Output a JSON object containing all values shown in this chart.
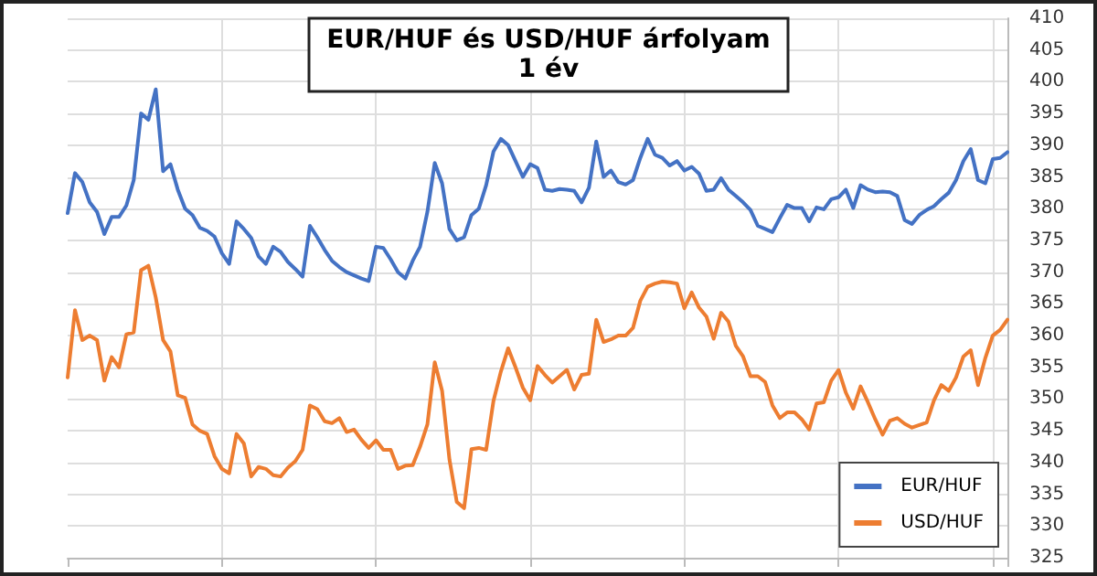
{
  "chart_data": {
    "type": "line",
    "title": "EUR/HUF és USD/HUF árfolyam",
    "subtitle": "1 év",
    "categories": [
      null,
      null,
      null,
      null,
      null,
      null,
      null,
      null,
      null,
      null,
      null,
      null,
      null,
      null,
      null,
      null,
      null,
      null,
      null,
      null,
      null,
      null,
      null,
      null,
      null,
      null,
      null,
      null,
      null,
      null,
      null,
      null,
      null,
      null,
      null,
      null,
      null,
      null,
      null,
      null,
      null,
      null,
      null,
      null,
      null,
      null,
      null,
      null,
      null,
      null,
      null,
      null,
      null,
      null,
      null,
      null,
      null,
      null,
      null,
      null,
      null,
      null,
      null,
      null,
      null,
      null,
      null,
      null,
      null,
      null,
      null,
      null,
      null,
      null,
      null,
      null,
      null,
      null,
      null,
      null,
      null,
      null,
      null,
      null,
      null,
      null,
      null,
      null,
      null,
      null,
      null,
      null,
      null,
      null,
      null,
      null,
      null,
      null,
      null,
      null,
      null,
      null,
      null,
      null,
      null,
      null,
      null,
      null,
      null,
      null,
      null,
      null,
      null,
      null,
      null,
      null,
      null,
      null,
      null,
      null,
      null,
      null,
      null,
      null,
      null,
      null,
      null,
      null,
      null
    ],
    "series": [
      {
        "name": "EUR/HUF",
        "color": "#4472c4",
        "values": [
          379.3,
          385.6,
          384.2,
          381,
          379.5,
          376,
          378.7,
          378.7,
          380.5,
          384.5,
          395,
          394,
          398.8,
          385.9,
          387,
          383,
          380,
          379,
          377,
          376.5,
          375.6,
          373,
          371.3,
          378,
          376.8,
          375.4,
          372.5,
          371.3,
          374,
          373.2,
          371.6,
          370.5,
          369.3,
          377.3,
          375.5,
          373.5,
          371.8,
          370.8,
          370,
          369.5,
          369,
          368.6,
          374,
          373.8,
          372,
          370,
          369,
          371.8,
          374,
          379.5,
          387.2,
          384,
          376.8,
          375,
          375.5,
          379,
          380,
          383.7,
          389,
          391,
          390,
          387.5,
          385,
          387,
          386.4,
          383,
          382.8,
          383.1,
          383,
          382.8,
          381,
          383.3,
          390.6,
          385,
          386,
          384.2,
          383.8,
          384.5,
          388,
          391,
          388.5,
          388,
          386.8,
          387.5,
          386,
          386.6,
          385.5,
          382.8,
          383,
          384.8,
          383,
          382,
          381,
          379.8,
          377.3,
          376.8,
          376.3,
          378.5,
          380.6,
          380.1,
          380.1,
          378,
          380.2,
          379.9,
          381.5,
          381.8,
          383,
          380.1,
          383.7,
          383,
          382.6,
          382.7,
          382.6,
          382,
          378.2,
          377.6,
          379,
          379.8,
          380.4,
          381.5,
          382.5,
          384.5,
          387.5,
          389.4,
          384.5,
          384,
          387.8,
          388,
          388.9
        ]
      },
      {
        "name": "USD/HUF",
        "color": "#ed7d31",
        "values": [
          353.4,
          364,
          359.3,
          360,
          359.3,
          352.9,
          356.6,
          355,
          360.2,
          360.5,
          370.3,
          371,
          366,
          359.3,
          357.5,
          350.6,
          350.2,
          346,
          345,
          344.5,
          341,
          339,
          338.3,
          344.5,
          343,
          337.8,
          339.3,
          339,
          338,
          337.8,
          339.2,
          340.2,
          342,
          349,
          348.4,
          346.5,
          346.2,
          347,
          344.8,
          345.2,
          343.6,
          342.3,
          343.5,
          342,
          342,
          339,
          339.5,
          339.6,
          342.5,
          346,
          355.8,
          351.3,
          340.5,
          333.8,
          332.8,
          342.1,
          342.3,
          342,
          349.7,
          354.3,
          358,
          355,
          351.8,
          349.8,
          355.2,
          353.8,
          352.6,
          353.6,
          354.6,
          351.5,
          353.8,
          354,
          362.5,
          359,
          359.4,
          360,
          360,
          361.2,
          365.5,
          367.7,
          368.2,
          368.5,
          368.4,
          368.2,
          364.3,
          366.8,
          364.4,
          363,
          359.5,
          363.6,
          362.2,
          358.4,
          356.7,
          353.6,
          353.6,
          352.7,
          349,
          347,
          347.9,
          347.9,
          346.8,
          345.2,
          349.3,
          349.5,
          352.9,
          354.6,
          351,
          348.5,
          352,
          349.5,
          346.8,
          344.4,
          346.6,
          347,
          346.1,
          345.5,
          345.9,
          346.3,
          349.8,
          352.2,
          351.3,
          353.4,
          356.7,
          357.7,
          352.2,
          356.5,
          360,
          360.9,
          362.5
        ]
      }
    ],
    "ylim": [
      325,
      410
    ],
    "yticks": [
      325,
      330,
      335,
      340,
      345,
      350,
      355,
      360,
      365,
      370,
      375,
      380,
      385,
      390,
      395,
      400,
      405,
      410
    ],
    "grid": true,
    "legend": "bottom right",
    "marker": "none",
    "line_style": "solid"
  }
}
